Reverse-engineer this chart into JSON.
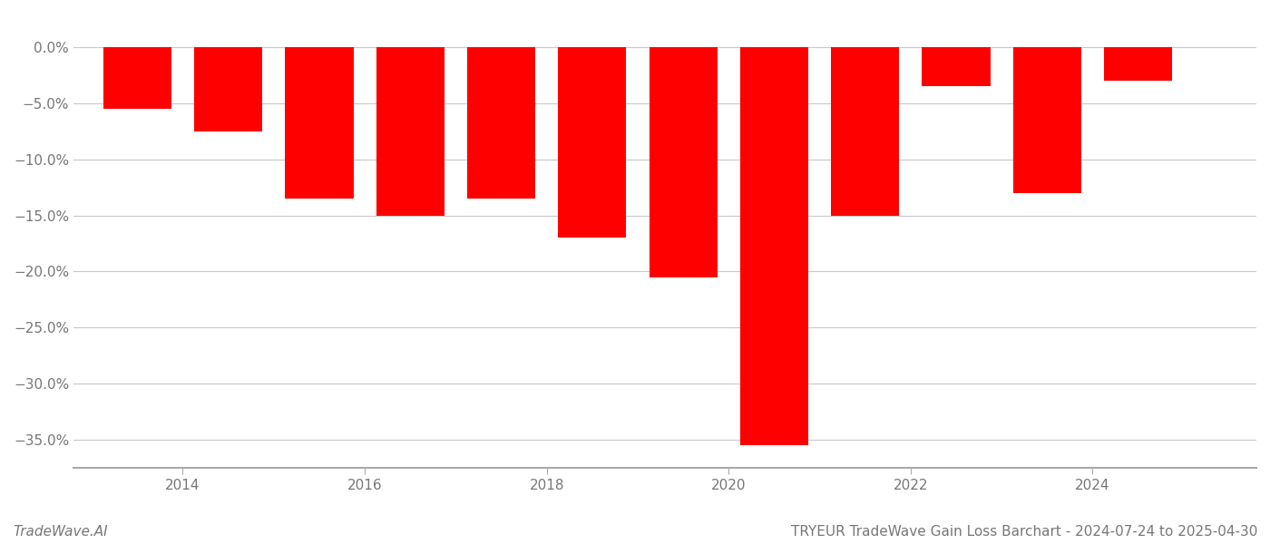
{
  "years": [
    2013.5,
    2014.5,
    2015.5,
    2016.5,
    2017.5,
    2018.5,
    2019.5,
    2020.5,
    2021.5,
    2022.5,
    2023.5,
    2024.5
  ],
  "values": [
    -5.5,
    -7.5,
    -13.5,
    -15.0,
    -13.5,
    -17.0,
    -20.5,
    -35.5,
    -15.0,
    -3.5,
    -13.0,
    -3.0
  ],
  "bar_color": "#ff0000",
  "background_color": "#ffffff",
  "grid_color": "#c8c8c8",
  "axis_color": "#aaaaaa",
  "text_color": "#777777",
  "yticks": [
    0.0,
    -5.0,
    -10.0,
    -15.0,
    -20.0,
    -25.0,
    -30.0,
    -35.0
  ],
  "ytick_labels": [
    "0.0%",
    "−5.0%",
    "−10.0%",
    "−15.0%",
    "−20.0%",
    "−25.0%",
    "−30.0%",
    "−35.0%"
  ],
  "xticks": [
    2014,
    2016,
    2018,
    2020,
    2022,
    2024
  ],
  "ylim": [
    -37.5,
    2.0
  ],
  "xlim": [
    2012.8,
    2025.8
  ],
  "bar_width": 0.75,
  "title": "TRYEUR TradeWave Gain Loss Barchart - 2024-07-24 to 2025-04-30",
  "watermark": "TradeWave.AI",
  "title_fontsize": 11,
  "tick_fontsize": 11,
  "watermark_fontsize": 11
}
